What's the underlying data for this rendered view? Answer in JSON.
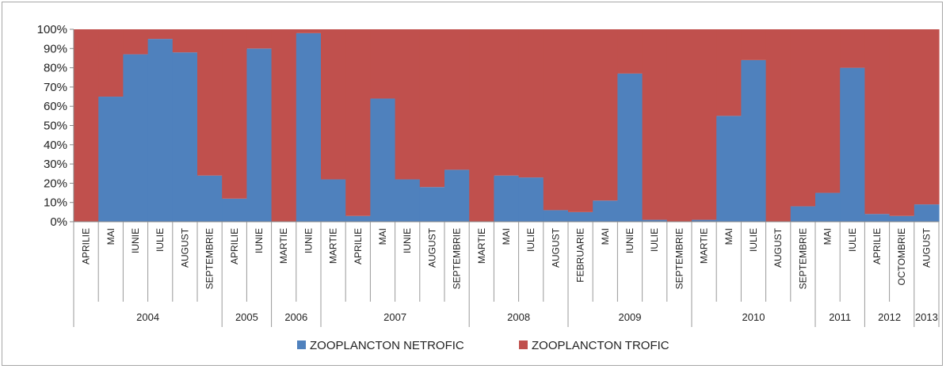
{
  "chart_data": {
    "type": "bar",
    "stacked_percent": true,
    "categories": [
      {
        "year": "2004",
        "month": "APRILIE"
      },
      {
        "year": "2004",
        "month": "MAI"
      },
      {
        "year": "2004",
        "month": "IUNIE"
      },
      {
        "year": "2004",
        "month": "IULIE"
      },
      {
        "year": "2004",
        "month": "AUGUST"
      },
      {
        "year": "2004",
        "month": "SEPTEMBRIE"
      },
      {
        "year": "2005",
        "month": "APRILIE"
      },
      {
        "year": "2005",
        "month": "IUNIE"
      },
      {
        "year": "2006",
        "month": "MARTIE"
      },
      {
        "year": "2006",
        "month": "IUNIE"
      },
      {
        "year": "2007",
        "month": "MARTIE"
      },
      {
        "year": "2007",
        "month": "APRILIE"
      },
      {
        "year": "2007",
        "month": "MAI"
      },
      {
        "year": "2007",
        "month": "IUNIE"
      },
      {
        "year": "2007",
        "month": "AUGUST"
      },
      {
        "year": "2007",
        "month": "SEPTEMBRIE"
      },
      {
        "year": "2008",
        "month": "MARTIE"
      },
      {
        "year": "2008",
        "month": "MAI"
      },
      {
        "year": "2008",
        "month": "IULIE"
      },
      {
        "year": "2008",
        "month": "AUGUST"
      },
      {
        "year": "2009",
        "month": "FEBRUARIE"
      },
      {
        "year": "2009",
        "month": "MAI"
      },
      {
        "year": "2009",
        "month": "IUNIE"
      },
      {
        "year": "2009",
        "month": "IULIE"
      },
      {
        "year": "2009",
        "month": "SEPTEMBRIE"
      },
      {
        "year": "2010",
        "month": "MARTIE"
      },
      {
        "year": "2010",
        "month": "MAI"
      },
      {
        "year": "2010",
        "month": "IULIE"
      },
      {
        "year": "2010",
        "month": "AUGUST"
      },
      {
        "year": "2010",
        "month": "SEPTEMBRIE"
      },
      {
        "year": "2011",
        "month": "MAI"
      },
      {
        "year": "2011",
        "month": "IULIE"
      },
      {
        "year": "2012",
        "month": "APRILIE"
      },
      {
        "year": "2012",
        "month": "OCTOMBRIE"
      },
      {
        "year": "2013",
        "month": "AUGUST"
      }
    ],
    "series": [
      {
        "name": "ZOOPLANCTON NETROFIC",
        "color": "#4f81bd",
        "values": [
          0,
          65,
          87,
          95,
          88,
          24,
          12,
          90,
          0,
          98,
          22,
          3,
          64,
          22,
          18,
          27,
          0,
          24,
          23,
          6,
          5,
          11,
          77,
          1,
          0,
          1,
          55,
          84,
          0,
          8,
          15,
          80,
          4,
          3,
          9
        ]
      },
      {
        "name": "ZOOPLANCTON TROFIC",
        "color": "#c0504d",
        "values": [
          100,
          35,
          13,
          5,
          12,
          76,
          88,
          10,
          100,
          2,
          78,
          97,
          36,
          78,
          82,
          73,
          100,
          76,
          77,
          94,
          95,
          89,
          23,
          99,
          100,
          99,
          45,
          16,
          100,
          92,
          85,
          20,
          96,
          97,
          91
        ]
      }
    ],
    "y_ticks": [
      "0%",
      "10%",
      "20%",
      "30%",
      "40%",
      "50%",
      "60%",
      "70%",
      "80%",
      "90%",
      "100%"
    ],
    "ylim": [
      0,
      100
    ],
    "grid": false,
    "legend_position": "bottom"
  }
}
